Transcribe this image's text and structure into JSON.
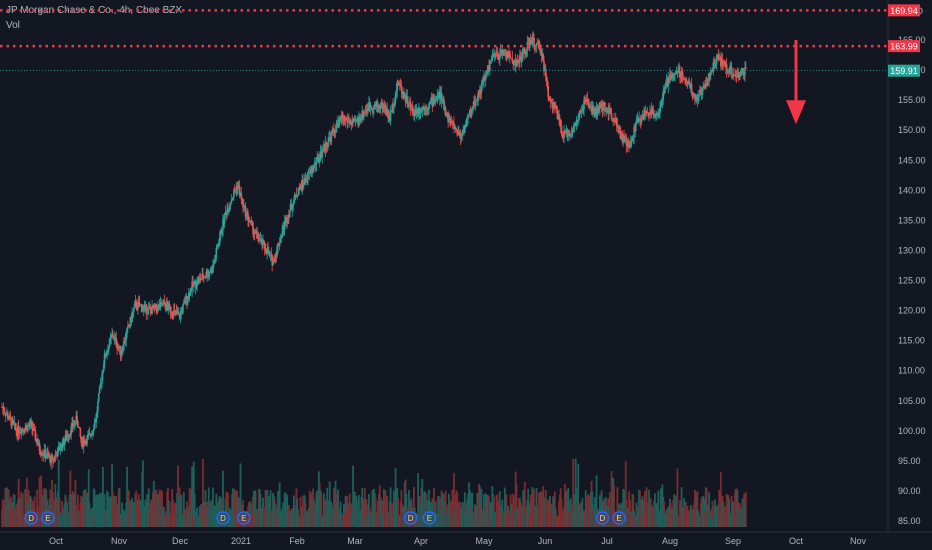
{
  "header": {
    "title": "JP Morgan Chase & Co., 4h, Cboe BZX",
    "volume_label": "Vol"
  },
  "colors": {
    "background": "#131722",
    "up": "#26a69a",
    "down": "#ef5350",
    "axis_text": "#b2b5be",
    "level_line": "#f23645",
    "last_price": "#26a69a",
    "arrow": "#f23645",
    "volume_up": "#1f5f5a",
    "volume_down": "#7a2d31",
    "event_badge": "#2962ff"
  },
  "chart_data": {
    "type": "candlestick",
    "currency": "USD",
    "ylim": [
      85,
      170
    ],
    "y_ticks": [
      85,
      90,
      95,
      100,
      105,
      110,
      115,
      120,
      125,
      130,
      135,
      140,
      145,
      150,
      155,
      160,
      165,
      170
    ],
    "y_tick_labels": [
      "85.00",
      "90.00",
      "95.00",
      "100.00",
      "105.00",
      "110.00",
      "115.00",
      "120.00",
      "125.00",
      "130.00",
      "135.00",
      "140.00",
      "145.00",
      "150.00",
      "155.00",
      "160.00",
      "165.00",
      "170.00"
    ],
    "x_labels": [
      "Oct",
      "Nov",
      "Dec",
      "2021",
      "Feb",
      "Mar",
      "Apr",
      "May",
      "Jun",
      "Jul",
      "Aug",
      "Sep",
      "Oct",
      "Nov"
    ],
    "price_series": [
      [
        "2020-09-21",
        104
      ],
      [
        "2020-09-28",
        100
      ],
      [
        "2020-10-05",
        101
      ],
      [
        "2020-10-09",
        97
      ],
      [
        "2020-10-15",
        95
      ],
      [
        "2020-10-22",
        99
      ],
      [
        "2020-10-27",
        102
      ],
      [
        "2020-10-29",
        98
      ],
      [
        "2020-11-02",
        99
      ],
      [
        "2020-11-05",
        102
      ],
      [
        "2020-11-09",
        112
      ],
      [
        "2020-11-13",
        116
      ],
      [
        "2020-11-17",
        113
      ],
      [
        "2020-11-24",
        121
      ],
      [
        "2020-12-01",
        120
      ],
      [
        "2020-12-08",
        121
      ],
      [
        "2020-12-15",
        119
      ],
      [
        "2020-12-21",
        124
      ],
      [
        "2020-12-31",
        127
      ],
      [
        "2021-01-06",
        136
      ],
      [
        "2021-01-12",
        141
      ],
      [
        "2021-01-15",
        137
      ],
      [
        "2021-01-20",
        133
      ],
      [
        "2021-01-26",
        130
      ],
      [
        "2021-01-29",
        128
      ],
      [
        "2021-02-04",
        135
      ],
      [
        "2021-02-10",
        140
      ],
      [
        "2021-02-16",
        143
      ],
      [
        "2021-02-24",
        148
      ],
      [
        "2021-03-03",
        152
      ],
      [
        "2021-03-09",
        151
      ],
      [
        "2021-03-16",
        154
      ],
      [
        "2021-03-23",
        154
      ],
      [
        "2021-03-26",
        152
      ],
      [
        "2021-03-30",
        158
      ],
      [
        "2021-04-06",
        153
      ],
      [
        "2021-04-13",
        154
      ],
      [
        "2021-04-19",
        156
      ],
      [
        "2021-04-23",
        152
      ],
      [
        "2021-04-29",
        149
      ],
      [
        "2021-05-05",
        154
      ],
      [
        "2021-05-10",
        158
      ],
      [
        "2021-05-14",
        162
      ],
      [
        "2021-05-20",
        163
      ],
      [
        "2021-05-26",
        161
      ],
      [
        "2021-06-02",
        165
      ],
      [
        "2021-06-07",
        163
      ],
      [
        "2021-06-10",
        156
      ],
      [
        "2021-06-14",
        153
      ],
      [
        "2021-06-17",
        149
      ],
      [
        "2021-06-22",
        150
      ],
      [
        "2021-06-28",
        155
      ],
      [
        "2021-07-02",
        153
      ],
      [
        "2021-07-07",
        154
      ],
      [
        "2021-07-12",
        152
      ],
      [
        "2021-07-15",
        149
      ],
      [
        "2021-07-19",
        147
      ],
      [
        "2021-07-22",
        151
      ],
      [
        "2021-07-27",
        153
      ],
      [
        "2021-08-02",
        153
      ],
      [
        "2021-08-06",
        158
      ],
      [
        "2021-08-11",
        160
      ],
      [
        "2021-08-16",
        158
      ],
      [
        "2021-08-20",
        155
      ],
      [
        "2021-08-25",
        158
      ],
      [
        "2021-08-30",
        162
      ],
      [
        "2021-09-02",
        161
      ],
      [
        "2021-09-08",
        159
      ],
      [
        "2021-09-13",
        159.91
      ]
    ],
    "horizontal_levels": [
      {
        "value": 169.94,
        "label": "169.94",
        "style": "dotted"
      },
      {
        "value": 163.99,
        "label": "163.99",
        "style": "dotted"
      }
    ],
    "last_price": {
      "value": 159.91,
      "label": "159.91"
    },
    "annotations": [
      {
        "type": "arrow-down",
        "from": 165,
        "to": 151,
        "date": "2021-10-01"
      }
    ],
    "event_badges": [
      {
        "label": "D",
        "date": "2020-10-05"
      },
      {
        "label": "E",
        "date": "2020-10-13"
      },
      {
        "label": "D",
        "date": "2021-01-05"
      },
      {
        "label": "E",
        "date": "2021-01-15"
      },
      {
        "label": "D",
        "date": "2021-04-05"
      },
      {
        "label": "E",
        "date": "2021-04-14"
      },
      {
        "label": "D",
        "date": "2021-07-06"
      },
      {
        "label": "E",
        "date": "2021-07-14"
      }
    ]
  }
}
